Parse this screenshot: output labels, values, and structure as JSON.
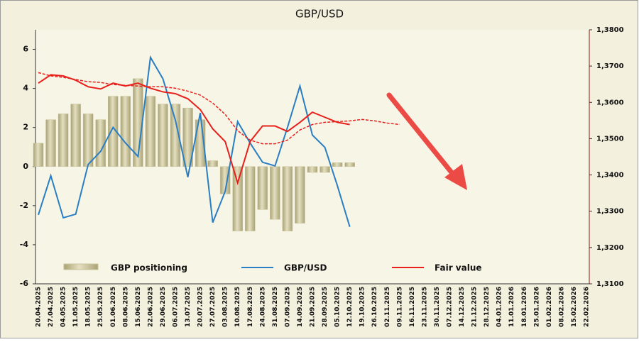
{
  "chart_data": {
    "type": "bar",
    "title": "GBP/USD",
    "categories": [
      "20.04.2025",
      "27.04.2025",
      "04.05.2025",
      "11.05.2025",
      "18.05.2025",
      "25.05.2025",
      "01.06.2025",
      "08.06.2025",
      "15.06.2025",
      "22.06.2025",
      "29.06.2025",
      "06.07.2025",
      "13.07.2025",
      "20.07.2025",
      "27.07.2025",
      "03.08.2025",
      "10.08.2025",
      "17.08.2025",
      "24.08.2025",
      "31.08.2025",
      "07.09.2025",
      "14.09.2025",
      "21.09.2025",
      "28.09.2025",
      "05.10.2025",
      "12.10.2025",
      "19.10.2025",
      "26.10.2025",
      "02.11.2025",
      "09.11.2025",
      "16.11.2025",
      "23.11.2025",
      "30.11.2025",
      "07.12.2025",
      "14.12.2025",
      "21.12.2025",
      "28.12.2025",
      "04.01.2026",
      "11.01.2026",
      "18.01.2026",
      "25.01.2026",
      "01.02.2026",
      "08.02.2026",
      "15.02.2026",
      "22.02.2026"
    ],
    "ylim": [
      -6,
      7
    ],
    "yticks": [
      -6,
      -4,
      -2,
      0,
      2,
      4,
      6
    ],
    "y2lim": [
      1.31,
      1.38
    ],
    "y2ticks": [
      {
        "value": 1.31,
        "label": "1,3100"
      },
      {
        "value": 1.32,
        "label": "1,3200"
      },
      {
        "value": 1.33,
        "label": "1,3300"
      },
      {
        "value": 1.34,
        "label": "1,3400"
      },
      {
        "value": 1.35,
        "label": "1,3500"
      },
      {
        "value": 1.36,
        "label": "1,3600"
      },
      {
        "value": 1.37,
        "label": "1,3700"
      },
      {
        "value": 1.38,
        "label": "1,3800"
      }
    ],
    "series": [
      {
        "name": "GBP positioning",
        "type": "bar",
        "color": "#c9c39b",
        "values": [
          1.2,
          2.4,
          2.7,
          3.2,
          2.7,
          2.4,
          3.6,
          3.6,
          4.5,
          3.6,
          3.2,
          3.2,
          3.0,
          2.4,
          0.3,
          -1.4,
          -3.3,
          -3.3,
          -2.2,
          -2.7,
          -3.3,
          -2.9,
          -0.3,
          -0.3,
          0.2,
          0.2,
          null,
          null,
          null,
          null,
          null,
          null,
          null,
          null,
          null,
          null,
          null,
          null,
          null,
          null,
          null,
          null,
          null,
          null,
          null
        ]
      },
      {
        "name": "GBP/USD",
        "type": "line",
        "axis": "y2",
        "color": "#2a7ec3",
        "values": [
          1.329,
          1.3398,
          1.3282,
          1.3292,
          1.3429,
          1.3465,
          1.3531,
          1.3488,
          1.3451,
          1.3724,
          1.3665,
          1.3551,
          1.3394,
          1.3571,
          1.3269,
          1.3355,
          1.3547,
          1.3488,
          1.3435,
          1.3425,
          1.3531,
          1.3645,
          1.351,
          1.3476,
          1.3371,
          1.3257,
          null,
          null,
          null,
          null,
          null,
          null,
          null,
          null,
          null,
          null,
          null,
          null,
          null,
          null,
          null,
          null,
          null,
          null,
          null
        ]
      },
      {
        "name": "Fair value",
        "type": "line",
        "axis": "y2",
        "color": "#e8201c",
        "values": [
          1.3653,
          1.3676,
          1.3673,
          1.3661,
          1.3643,
          1.3637,
          1.3653,
          1.3645,
          1.3653,
          1.3639,
          1.3629,
          1.3624,
          1.361,
          1.358,
          1.3527,
          1.3492,
          1.3378,
          1.3492,
          1.3535,
          1.3535,
          1.352,
          1.3545,
          1.3573,
          1.3559,
          1.3545,
          1.3539,
          null,
          null,
          null,
          null,
          null,
          null,
          null,
          null,
          null,
          null,
          null,
          null,
          null,
          null,
          null,
          null,
          null,
          null,
          null
        ]
      },
      {
        "type": "line",
        "axis": "y2",
        "color": "#e8201c",
        "dash": true,
        "values": [
          1.3682,
          1.3673,
          1.3669,
          1.3663,
          1.3657,
          1.3655,
          1.3649,
          1.3647,
          1.3645,
          1.3643,
          1.3643,
          1.3639,
          1.3631,
          1.362,
          1.3598,
          1.3567,
          1.3522,
          1.3496,
          1.3486,
          1.3486,
          1.3496,
          1.3524,
          1.3539,
          1.3545,
          1.3547,
          1.3549,
          1.3553,
          1.3549,
          1.3543,
          1.3539,
          null,
          null,
          null,
          null,
          null,
          null,
          null,
          null,
          null,
          null,
          null,
          null,
          null,
          null,
          null
        ]
      }
    ]
  }
}
